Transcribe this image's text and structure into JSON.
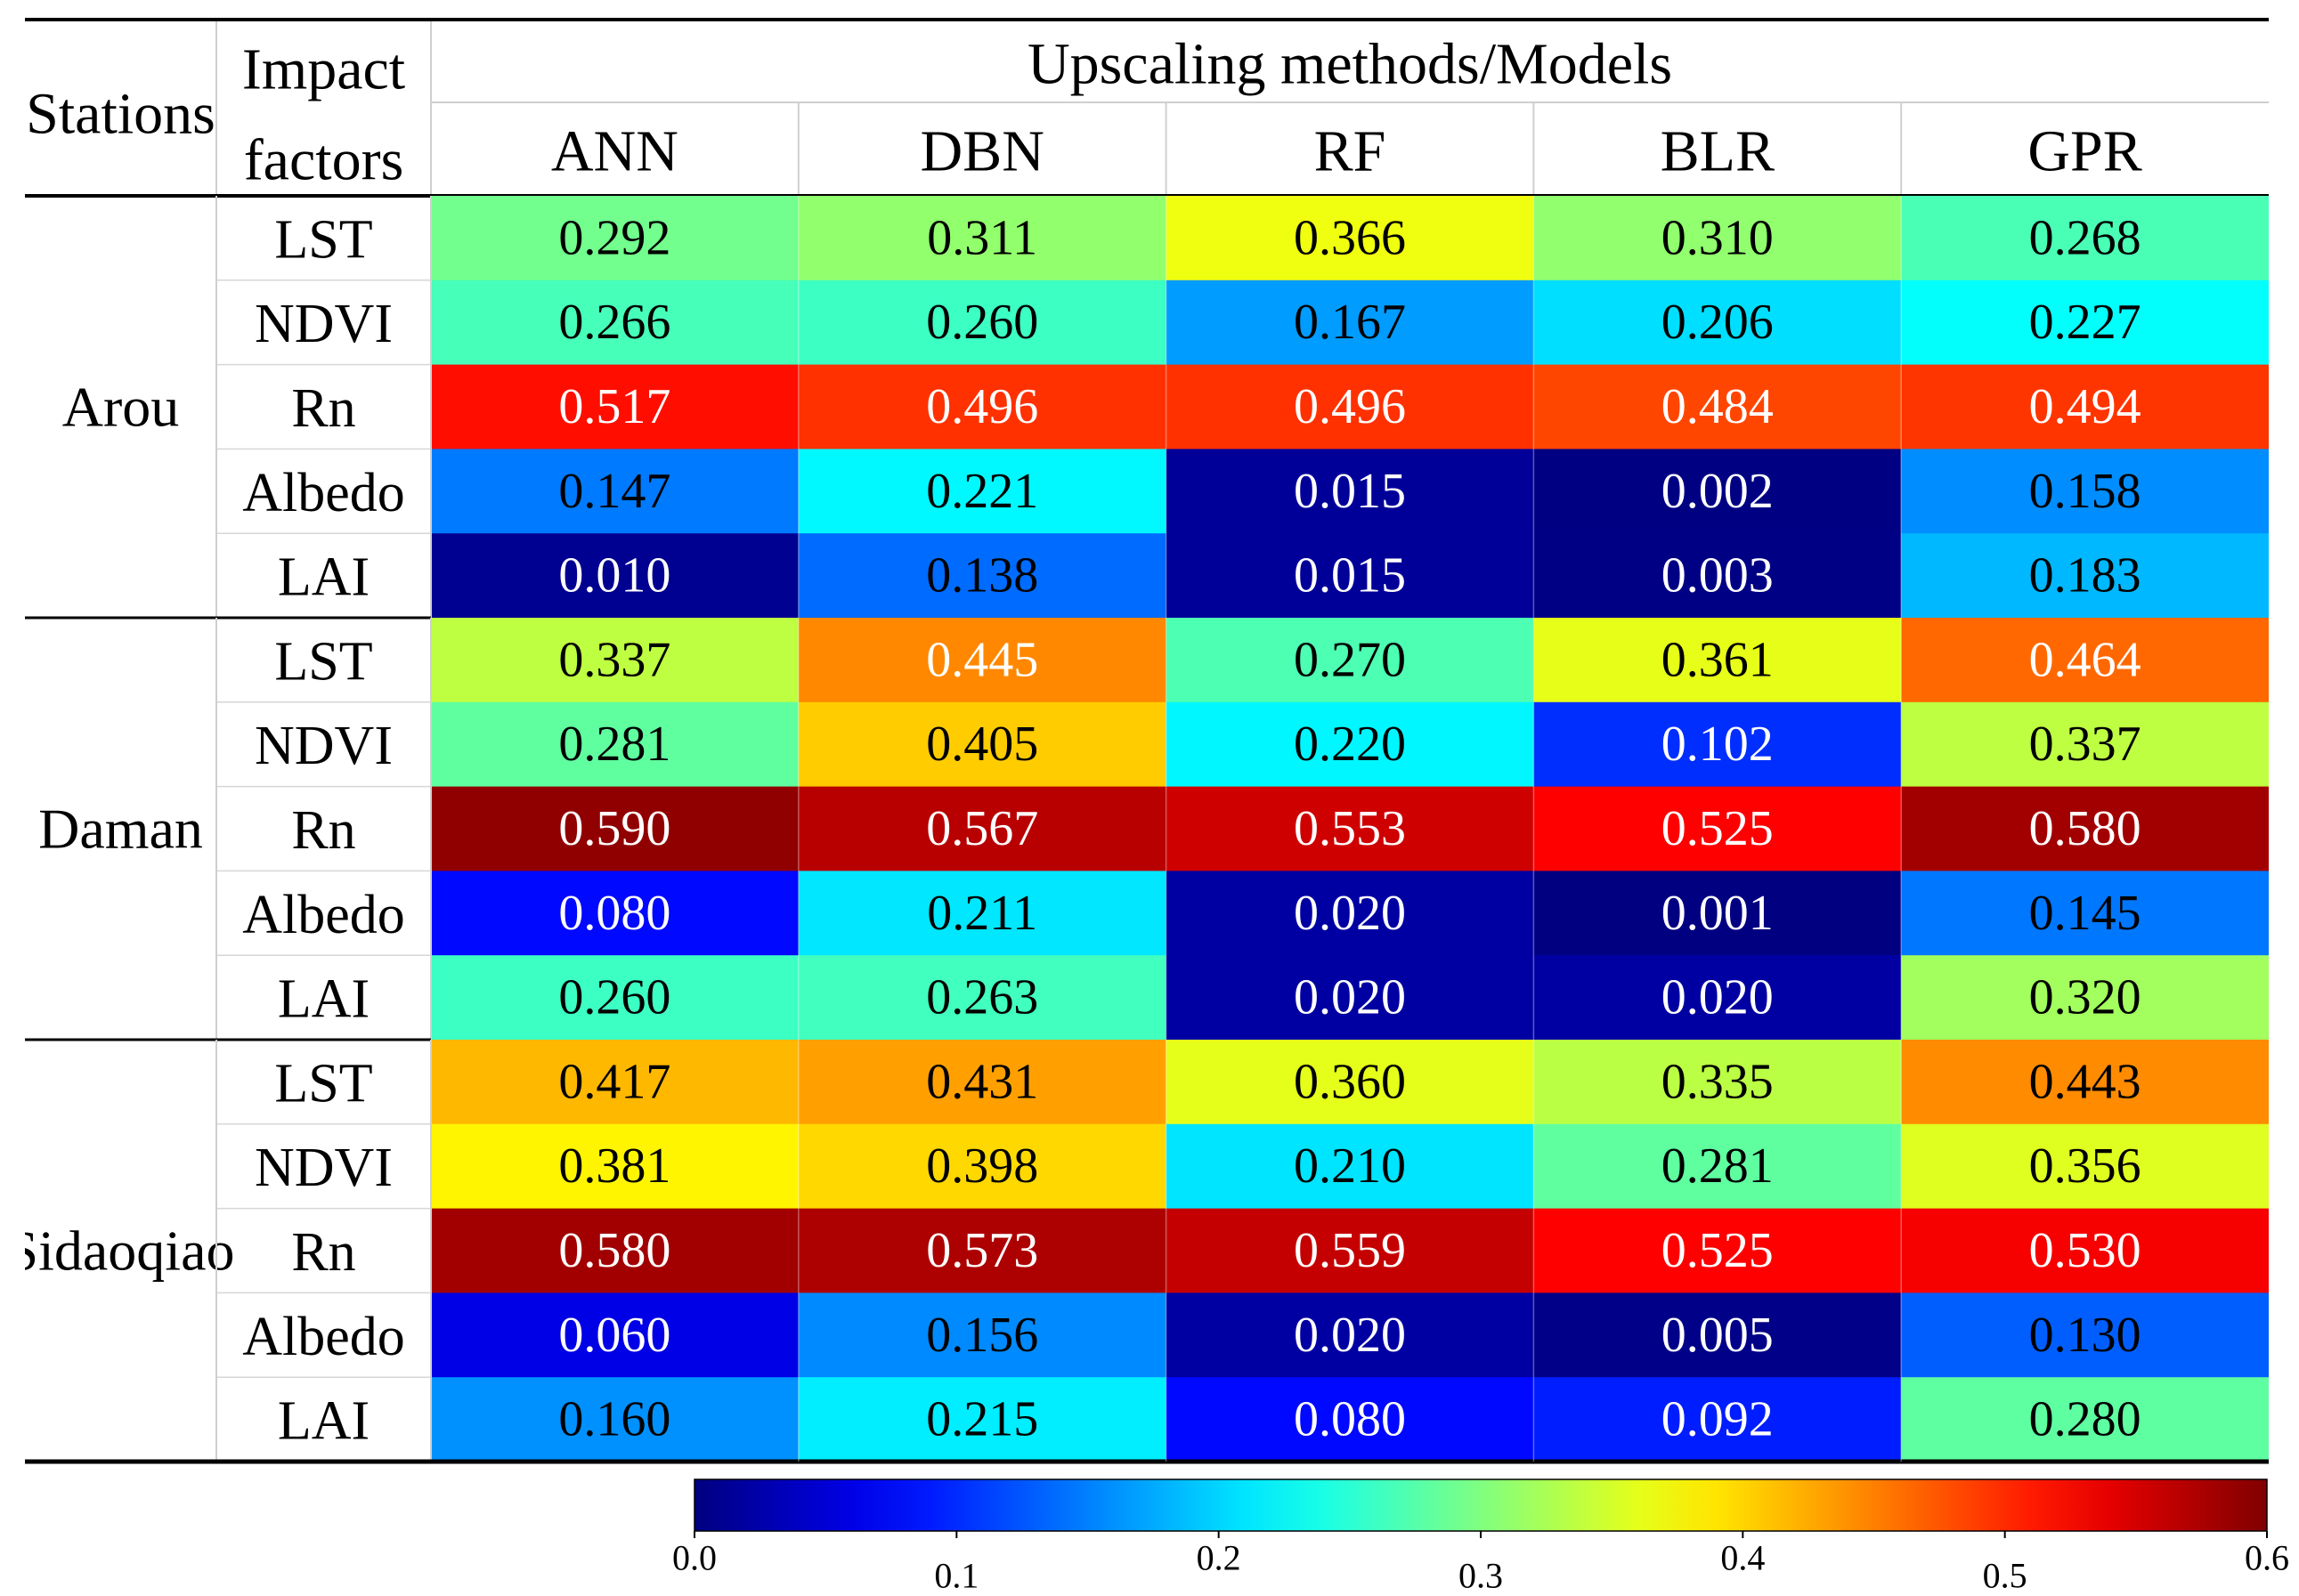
{
  "chart_data": {
    "type": "heatmap",
    "header": {
      "stations_label": "Stations",
      "factors_label_line1": "Impact",
      "factors_label_line2": "factors",
      "methods_label": "Upscaling methods/Models"
    },
    "columns": [
      "ANN",
      "DBN",
      "RF",
      "BLR",
      "GPR"
    ],
    "groups": [
      {
        "station": "Arou",
        "rows": [
          {
            "factor": "LST",
            "values": [
              "0.292",
              "0.311",
              "0.366",
              "0.310",
              "0.268"
            ]
          },
          {
            "factor": "NDVI",
            "values": [
              "0.266",
              "0.260",
              "0.167",
              "0.206",
              "0.227"
            ]
          },
          {
            "factor": "Rn",
            "values": [
              "0.517",
              "0.496",
              "0.496",
              "0.484",
              "0.494"
            ]
          },
          {
            "factor": "Albedo",
            "values": [
              "0.147",
              "0.221",
              "0.015",
              "0.002",
              "0.158"
            ]
          },
          {
            "factor": "LAI",
            "values": [
              "0.010",
              "0.138",
              "0.015",
              "0.003",
              "0.183"
            ]
          }
        ]
      },
      {
        "station": "Daman",
        "rows": [
          {
            "factor": "LST",
            "values": [
              "0.337",
              "0.445",
              "0.270",
              "0.361",
              "0.464"
            ]
          },
          {
            "factor": "NDVI",
            "values": [
              "0.281",
              "0.405",
              "0.220",
              "0.102",
              "0.337"
            ]
          },
          {
            "factor": "Rn",
            "values": [
              "0.590",
              "0.567",
              "0.553",
              "0.525",
              "0.580"
            ]
          },
          {
            "factor": "Albedo",
            "values": [
              "0.080",
              "0.211",
              "0.020",
              "0.001",
              "0.145"
            ]
          },
          {
            "factor": "LAI",
            "values": [
              "0.260",
              "0.263",
              "0.020",
              "0.020",
              "0.320"
            ]
          }
        ]
      },
      {
        "station": "Sidaoqiao",
        "rows": [
          {
            "factor": "LST",
            "values": [
              "0.417",
              "0.431",
              "0.360",
              "0.335",
              "0.443"
            ]
          },
          {
            "factor": "NDVI",
            "values": [
              "0.381",
              "0.398",
              "0.210",
              "0.281",
              "0.356"
            ]
          },
          {
            "factor": "Rn",
            "values": [
              "0.580",
              "0.573",
              "0.559",
              "0.525",
              "0.530"
            ]
          },
          {
            "factor": "Albedo",
            "values": [
              "0.060",
              "0.156",
              "0.020",
              "0.005",
              "0.130"
            ]
          },
          {
            "factor": "LAI",
            "values": [
              "0.160",
              "0.215",
              "0.080",
              "0.092",
              "0.280"
            ]
          }
        ]
      }
    ],
    "colorbar": {
      "range": [
        0.0,
        0.6
      ],
      "ticks": [
        "0.0",
        "0.1",
        "0.2",
        "0.3",
        "0.4",
        "0.5",
        "0.6"
      ],
      "colormap": "jet"
    }
  }
}
